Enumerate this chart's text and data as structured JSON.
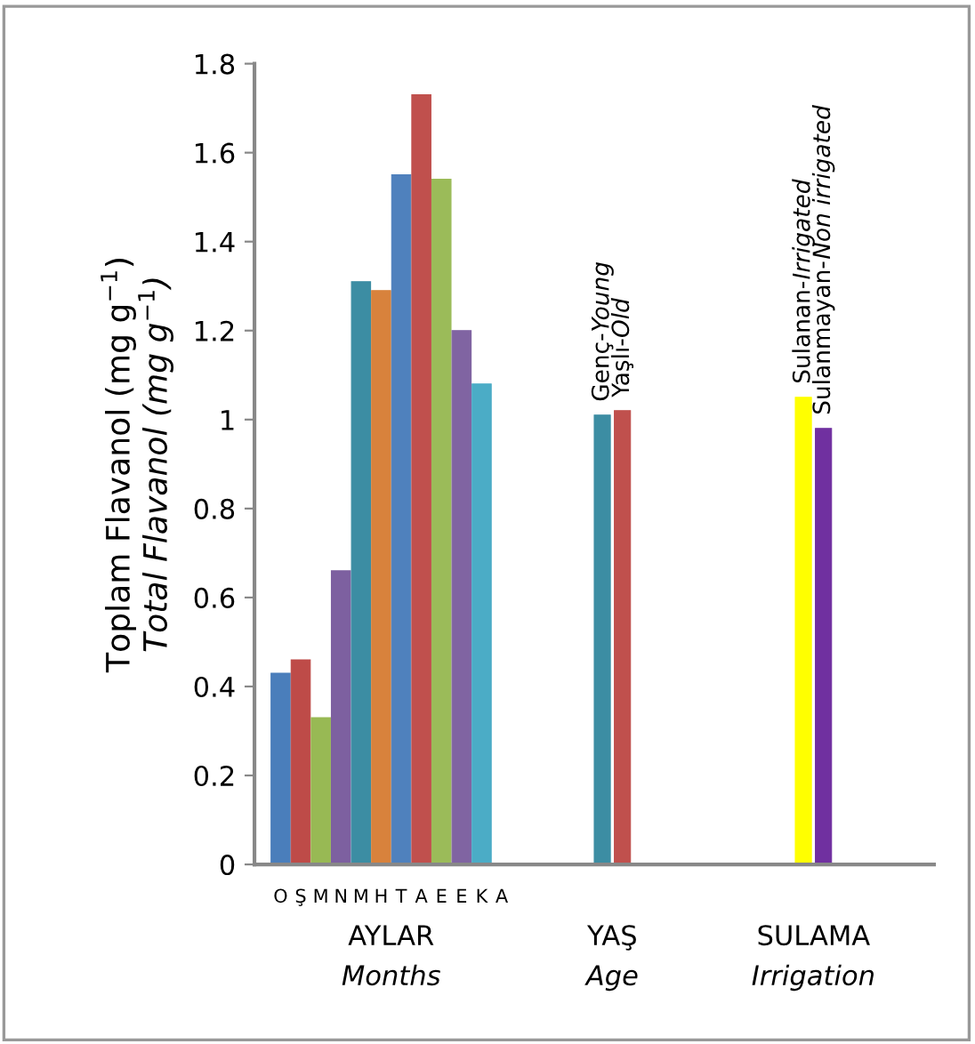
{
  "chart_data": {
    "type": "bar",
    "ylabel": "Toplam Flavanol (mg g$^{−1}$)\nTotal Flavanol (mg g$^{−1}$)",
    "categories": [
      "O",
      "Ş",
      "M",
      "N",
      "M",
      "H",
      "T",
      "A",
      "E",
      "E",
      "K",
      "A",
      null,
      null,
      null,
      null,
      "Genç-Young",
      "Yaşlı-Old",
      null,
      null,
      null,
      null,
      null,
      null,
      null,
      null,
      "Sulanan-Irrigated",
      "Sulanmayan-Non irrigated",
      null,
      null,
      null,
      null,
      null
    ],
    "values": [
      0.43,
      0.46,
      0.33,
      0.66,
      1.31,
      1.29,
      1.55,
      1.73,
      1.54,
      1.2,
      1.08,
      0,
      null,
      null,
      null,
      null,
      1.01,
      1.02,
      null,
      null,
      null,
      null,
      null,
      null,
      null,
      null,
      1.05,
      0.98,
      null,
      null,
      null,
      null,
      null
    ],
    "colors": [
      "#4a7ebb",
      "#be4b48",
      "#98b954",
      "#7d60a0",
      "#3c8da3",
      "#d8823c",
      "#4f81bd",
      "#c0504d",
      "#9bbb59",
      "#8064a2",
      "#4bacc6",
      "#f79646",
      null,
      null,
      null,
      null,
      "#3c8da3",
      "#c0504d",
      null,
      null,
      null,
      null,
      null,
      null,
      null,
      null,
      "#ffff00",
      "#7030a0",
      null,
      null,
      null,
      null,
      null
    ],
    "ylim": [
      0,
      1.8
    ],
    "yticks": [
      0,
      0.2,
      0.4,
      0.6,
      0.8,
      1,
      1.2,
      1.4,
      1.6,
      1.8
    ],
    "annotations": [
      "AYLAR\nMonths",
      "YAŞ\nAge",
      "SULAMA\nIrrigation"
    ],
    "grid": false
  }
}
